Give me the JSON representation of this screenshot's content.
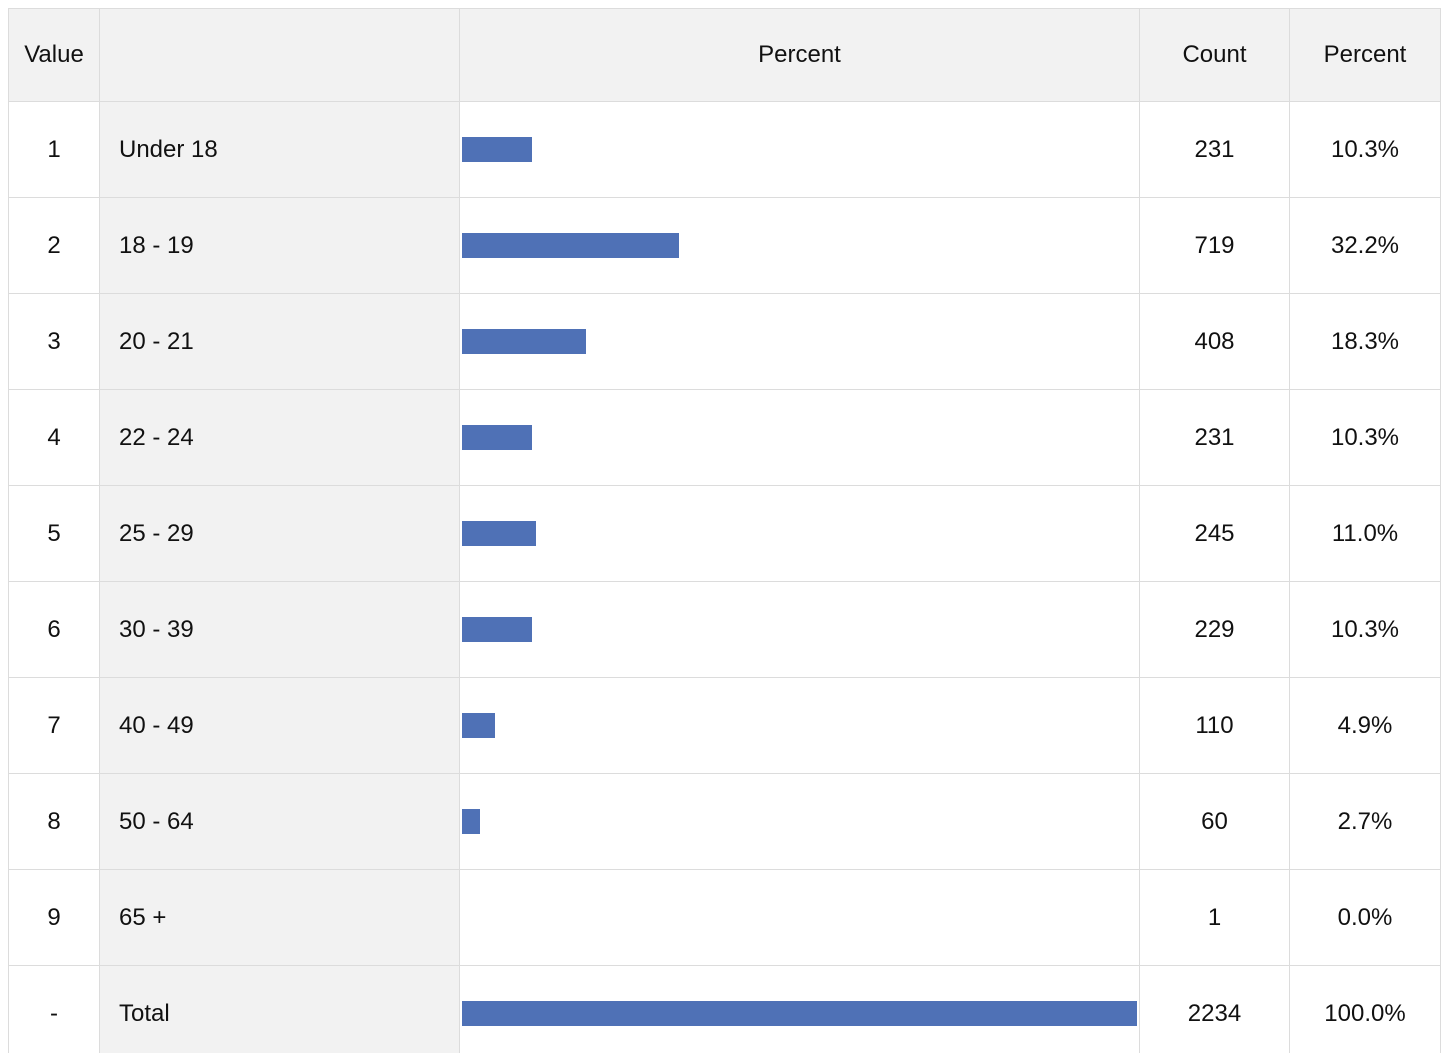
{
  "table": {
    "headers": [
      "Value",
      "Percent",
      "Count",
      "Percent"
    ],
    "rows": [
      {
        "value": 1,
        "label": "Under 18",
        "count": 231,
        "percent": {
          "value": 10.3,
          "label": "10.3%"
        }
      },
      {
        "value": 2,
        "label": "18 - 19",
        "count": 719,
        "percent": {
          "value": 32.2,
          "label": "32.2%"
        }
      },
      {
        "value": 3,
        "label": "20 - 21",
        "count": 408,
        "percent": {
          "value": 18.3,
          "label": "18.3%"
        }
      },
      {
        "value": 4,
        "label": "22 - 24",
        "count": 231,
        "percent": {
          "value": 10.3,
          "label": "10.3%"
        }
      },
      {
        "value": 5,
        "label": "25 - 29",
        "count": 245,
        "percent": {
          "value": 11.0,
          "label": "11.0%"
        }
      },
      {
        "value": 6,
        "label": "30 - 39",
        "count": 229,
        "percent": {
          "value": 10.3,
          "label": "10.3%"
        }
      },
      {
        "value": 7,
        "label": "40 - 49",
        "count": 110,
        "percent": {
          "value": 4.9,
          "label": "4.9%"
        }
      },
      {
        "value": 8,
        "label": "50 - 64",
        "count": 60,
        "percent": {
          "value": 2.7,
          "label": "2.7%"
        }
      },
      {
        "value": 9,
        "label": "65 +",
        "count": 1,
        "percent": {
          "value": 0.0,
          "label": "0.0%"
        }
      },
      {
        "value": "-",
        "label": "Total",
        "count": 2234,
        "percent": {
          "value": 100.0,
          "label": "100.0%"
        }
      }
    ],
    "bar_color": "#4f71b6"
  }
}
